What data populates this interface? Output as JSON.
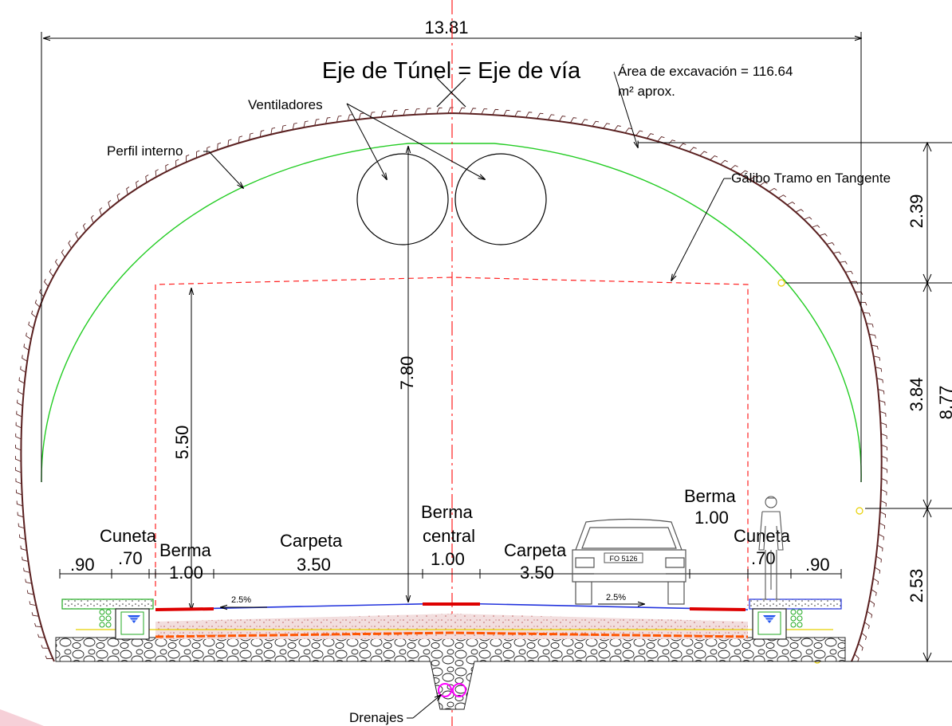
{
  "axis_title": "Eje de Túnel = Eje de vía",
  "excavation_area": {
    "line1": "Área de excavación = 116.64",
    "line2": "m² aprox."
  },
  "labels": {
    "ventiladores": "Ventiladores",
    "perfil_interno": "Perfil interno",
    "galibo": "Gálibo Tramo en Tangente",
    "drenajes": "Drenajes",
    "cuneta": "Cuneta",
    "berma": "Berma",
    "carpeta": "Carpeta",
    "berma_central_1": "Berma",
    "berma_central_2": "central"
  },
  "dimensions": {
    "total_width": "13.81",
    "inner_height": "7.80",
    "clearance_height": "5.50",
    "crown": "2.39",
    "middle": "3.84",
    "lower": "2.53",
    "total_height": "8.77",
    "cuneta_outer": ".90",
    "cuneta_width": ".70",
    "berma_width": "1.00",
    "carpeta_width": "3.50",
    "berma_central_width": "1.00",
    "slope": "2.5%"
  },
  "vehicle_plate": "FO 5126",
  "colors": {
    "rock": "#5a2020",
    "profile": "#22cc22",
    "clearance": "#ff2020",
    "axis": "#ff2020",
    "pavement": "#2233dd",
    "berma_stripe": "#dd0000",
    "drain": "#ff00ff",
    "base_yellow": "#e8d000"
  }
}
